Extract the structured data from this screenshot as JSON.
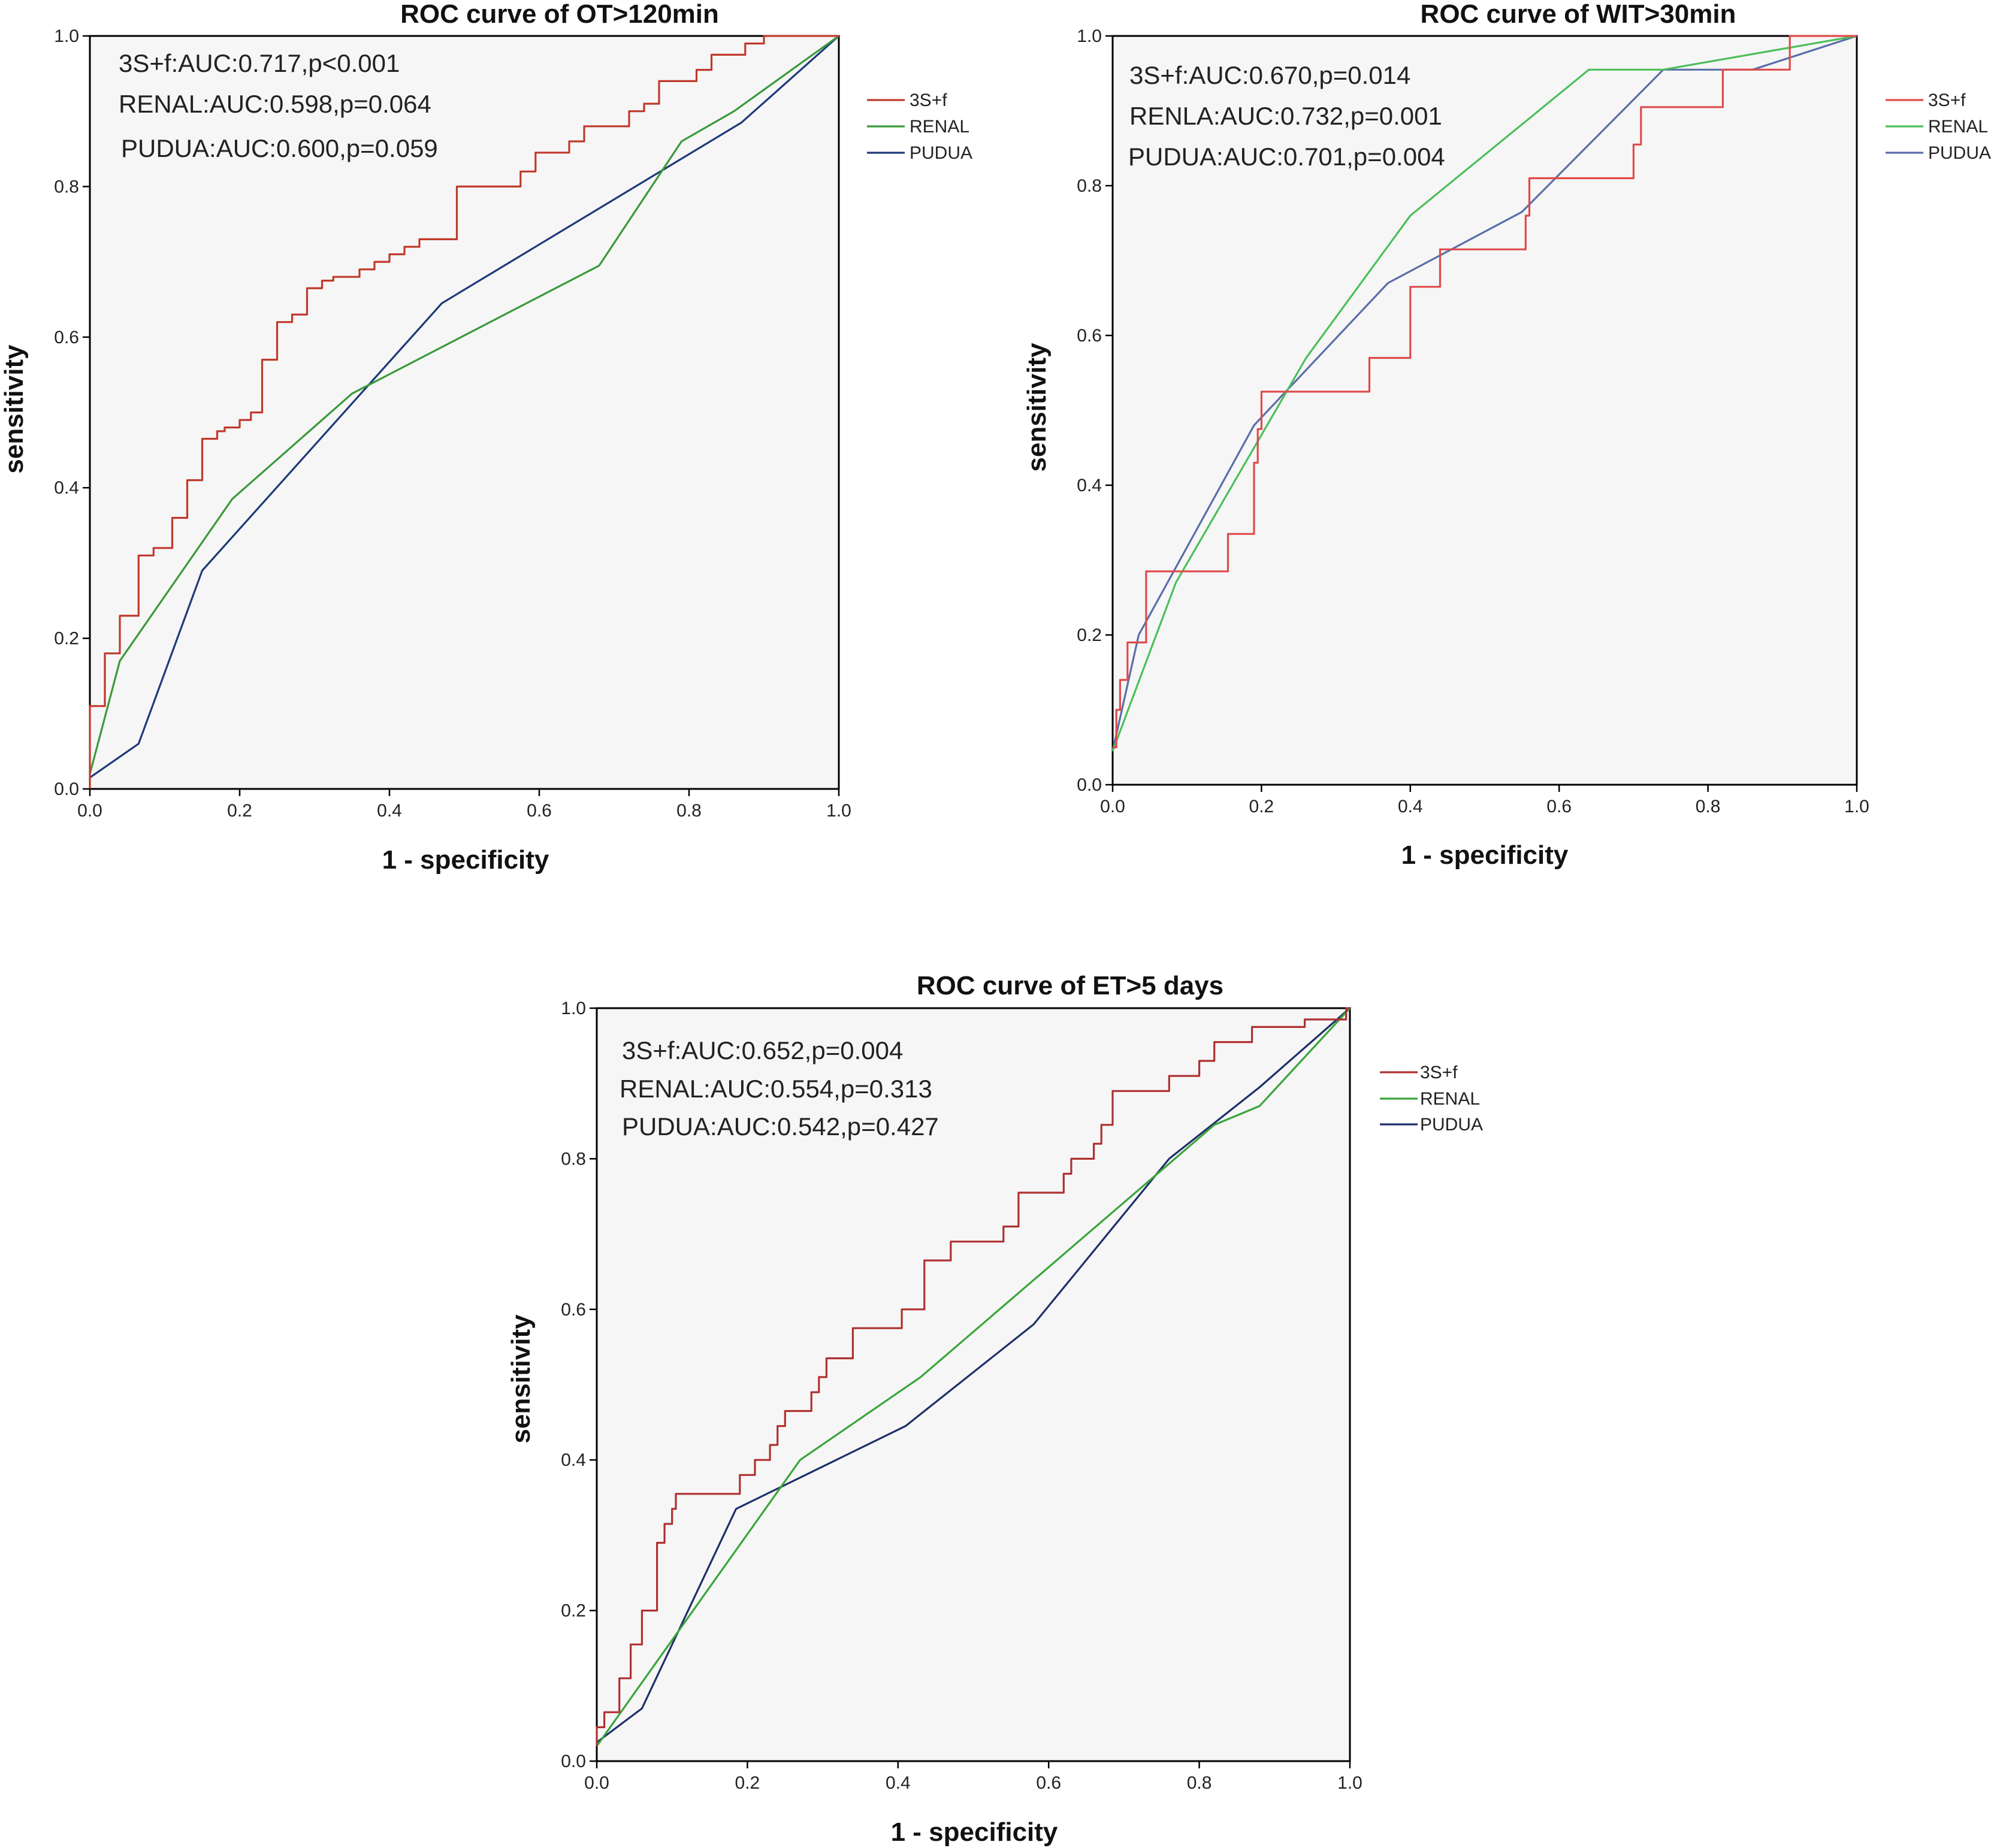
{
  "chart_data": [
    {
      "type": "line",
      "title": "ROC curve of OT>120min",
      "xlabel": "1 - specificity",
      "ylabel": "sensitivity",
      "xlim": [
        0,
        1
      ],
      "ylim": [
        0,
        1
      ],
      "x_ticks": [
        "0.0",
        "0.2",
        "0.4",
        "0.6",
        "0.8",
        "1.0"
      ],
      "y_ticks": [
        "0.0",
        "0.2",
        "0.4",
        "0.6",
        "0.8",
        "1.0"
      ],
      "legend_position": "right",
      "annotations": [
        "3S+f:AUC:0.717,p<0.001",
        "RENAL:AUC:0.598,p=0.064",
        "PUDUA:AUC:0.600,p=0.059"
      ],
      "series": [
        {
          "name": "3S+f",
          "color": "#c0392b",
          "points": [
            [
              0,
              0
            ],
            [
              0,
              0.11
            ],
            [
              0.02,
              0.11
            ],
            [
              0.02,
              0.18
            ],
            [
              0.04,
              0.18
            ],
            [
              0.04,
              0.23
            ],
            [
              0.065,
              0.23
            ],
            [
              0.065,
              0.31
            ],
            [
              0.085,
              0.31
            ],
            [
              0.085,
              0.32
            ],
            [
              0.11,
              0.32
            ],
            [
              0.11,
              0.36
            ],
            [
              0.13,
              0.36
            ],
            [
              0.13,
              0.41
            ],
            [
              0.15,
              0.41
            ],
            [
              0.15,
              0.465
            ],
            [
              0.17,
              0.465
            ],
            [
              0.17,
              0.475
            ],
            [
              0.18,
              0.475
            ],
            [
              0.18,
              0.48
            ],
            [
              0.2,
              0.48
            ],
            [
              0.2,
              0.49
            ],
            [
              0.215,
              0.49
            ],
            [
              0.215,
              0.5
            ],
            [
              0.23,
              0.5
            ],
            [
              0.23,
              0.57
            ],
            [
              0.25,
              0.57
            ],
            [
              0.25,
              0.62
            ],
            [
              0.27,
              0.62
            ],
            [
              0.27,
              0.63
            ],
            [
              0.29,
              0.63
            ],
            [
              0.29,
              0.665
            ],
            [
              0.31,
              0.665
            ],
            [
              0.31,
              0.675
            ],
            [
              0.325,
              0.675
            ],
            [
              0.325,
              0.68
            ],
            [
              0.36,
              0.68
            ],
            [
              0.36,
              0.69
            ],
            [
              0.38,
              0.69
            ],
            [
              0.38,
              0.7
            ],
            [
              0.4,
              0.7
            ],
            [
              0.4,
              0.71
            ],
            [
              0.42,
              0.71
            ],
            [
              0.42,
              0.72
            ],
            [
              0.44,
              0.72
            ],
            [
              0.44,
              0.73
            ],
            [
              0.49,
              0.73
            ],
            [
              0.49,
              0.8
            ],
            [
              0.575,
              0.8
            ],
            [
              0.575,
              0.82
            ],
            [
              0.595,
              0.82
            ],
            [
              0.595,
              0.845
            ],
            [
              0.64,
              0.845
            ],
            [
              0.64,
              0.86
            ],
            [
              0.66,
              0.86
            ],
            [
              0.66,
              0.88
            ],
            [
              0.72,
              0.88
            ],
            [
              0.72,
              0.9
            ],
            [
              0.74,
              0.9
            ],
            [
              0.74,
              0.91
            ],
            [
              0.76,
              0.91
            ],
            [
              0.76,
              0.94
            ],
            [
              0.81,
              0.94
            ],
            [
              0.81,
              0.955
            ],
            [
              0.83,
              0.955
            ],
            [
              0.83,
              0.975
            ],
            [
              0.875,
              0.975
            ],
            [
              0.875,
              0.99
            ],
            [
              0.9,
              0.99
            ],
            [
              0.9,
              1
            ],
            [
              1,
              1
            ]
          ]
        },
        {
          "name": "RENAL",
          "color": "#3a9a3a",
          "points": [
            [
              0,
              0.02
            ],
            [
              0.04,
              0.17
            ],
            [
              0.19,
              0.385
            ],
            [
              0.35,
              0.525
            ],
            [
              0.68,
              0.695
            ],
            [
              0.79,
              0.86
            ],
            [
              0.86,
              0.9
            ],
            [
              1,
              1
            ]
          ]
        },
        {
          "name": "PUDUA",
          "color": "#1f3a7a",
          "points": [
            [
              0,
              0.015
            ],
            [
              0.065,
              0.06
            ],
            [
              0.15,
              0.29
            ],
            [
              0.47,
              0.645
            ],
            [
              0.87,
              0.885
            ],
            [
              1,
              1
            ]
          ]
        }
      ]
    },
    {
      "type": "line",
      "title": "ROC curve of WIT>30min",
      "xlabel": "1 - specificity",
      "ylabel": "sensitivity",
      "xlim": [
        0,
        1
      ],
      "ylim": [
        0,
        1
      ],
      "x_ticks": [
        "0.0",
        "0.2",
        "0.4",
        "0.6",
        "0.8",
        "1.0"
      ],
      "y_ticks": [
        "0.0",
        "0.2",
        "0.4",
        "0.6",
        "0.8",
        "1.0"
      ],
      "legend_position": "right",
      "annotations": [
        "3S+f:AUC:0.670,p=0.014",
        "RENLA:AUC:0.732,p=0.001",
        "PUDUA:AUC:0.701,p=0.004"
      ],
      "series": [
        {
          "name": "3S+f",
          "color": "#e04a4a",
          "points": [
            [
              0,
              0.05
            ],
            [
              0.005,
              0.05
            ],
            [
              0.005,
              0.1
            ],
            [
              0.01,
              0.1
            ],
            [
              0.01,
              0.14
            ],
            [
              0.02,
              0.14
            ],
            [
              0.02,
              0.19
            ],
            [
              0.045,
              0.19
            ],
            [
              0.045,
              0.285
            ],
            [
              0.155,
              0.285
            ],
            [
              0.155,
              0.335
            ],
            [
              0.19,
              0.335
            ],
            [
              0.19,
              0.43
            ],
            [
              0.195,
              0.43
            ],
            [
              0.195,
              0.475
            ],
            [
              0.2,
              0.475
            ],
            [
              0.2,
              0.525
            ],
            [
              0.345,
              0.525
            ],
            [
              0.345,
              0.57
            ],
            [
              0.4,
              0.57
            ],
            [
              0.4,
              0.665
            ],
            [
              0.44,
              0.665
            ],
            [
              0.44,
              0.715
            ],
            [
              0.555,
              0.715
            ],
            [
              0.555,
              0.76
            ],
            [
              0.56,
              0.76
            ],
            [
              0.56,
              0.81
            ],
            [
              0.7,
              0.81
            ],
            [
              0.7,
              0.855
            ],
            [
              0.71,
              0.855
            ],
            [
              0.71,
              0.905
            ],
            [
              0.82,
              0.905
            ],
            [
              0.82,
              0.955
            ],
            [
              0.91,
              0.955
            ],
            [
              0.91,
              1
            ],
            [
              1,
              1
            ]
          ]
        },
        {
          "name": "RENAL",
          "color": "#4cbf5a",
          "points": [
            [
              0,
              0.045
            ],
            [
              0.085,
              0.27
            ],
            [
              0.26,
              0.57
            ],
            [
              0.4,
              0.76
            ],
            [
              0.64,
              0.955
            ],
            [
              0.74,
              0.955
            ],
            [
              1,
              1
            ]
          ]
        },
        {
          "name": "PUDUA",
          "color": "#5a6ea8",
          "points": [
            [
              0,
              0.045
            ],
            [
              0.035,
              0.2
            ],
            [
              0.19,
              0.48
            ],
            [
              0.37,
              0.67
            ],
            [
              0.55,
              0.765
            ],
            [
              0.74,
              0.955
            ],
            [
              0.86,
              0.955
            ],
            [
              1,
              1
            ]
          ]
        }
      ]
    },
    {
      "type": "line",
      "title": "ROC curve of ET>5 days",
      "xlabel": "1 - specificity",
      "ylabel": "sensitivity",
      "xlim": [
        0,
        1
      ],
      "ylim": [
        0,
        1
      ],
      "x_ticks": [
        "0.0",
        "0.2",
        "0.4",
        "0.6",
        "0.8",
        "1.0"
      ],
      "y_ticks": [
        "0.0",
        "0.2",
        "0.4",
        "0.6",
        "0.8",
        "1.0"
      ],
      "legend_position": "right",
      "annotations": [
        "3S+f:AUC:0.652,p=0.004",
        "RENAL:AUC:0.554,p=0.313",
        "PUDUA:AUC:0.542,p=0.427"
      ],
      "series": [
        {
          "name": "3S+f",
          "color": "#b03030",
          "points": [
            [
              0,
              0.02
            ],
            [
              0,
              0.045
            ],
            [
              0.01,
              0.045
            ],
            [
              0.01,
              0.065
            ],
            [
              0.03,
              0.065
            ],
            [
              0.03,
              0.11
            ],
            [
              0.045,
              0.11
            ],
            [
              0.045,
              0.155
            ],
            [
              0.06,
              0.155
            ],
            [
              0.06,
              0.2
            ],
            [
              0.08,
              0.2
            ],
            [
              0.08,
              0.29
            ],
            [
              0.09,
              0.29
            ],
            [
              0.09,
              0.315
            ],
            [
              0.1,
              0.315
            ],
            [
              0.1,
              0.335
            ],
            [
              0.105,
              0.335
            ],
            [
              0.105,
              0.355
            ],
            [
              0.19,
              0.355
            ],
            [
              0.19,
              0.38
            ],
            [
              0.21,
              0.38
            ],
            [
              0.21,
              0.4
            ],
            [
              0.23,
              0.4
            ],
            [
              0.23,
              0.42
            ],
            [
              0.24,
              0.42
            ],
            [
              0.24,
              0.445
            ],
            [
              0.25,
              0.445
            ],
            [
              0.25,
              0.465
            ],
            [
              0.285,
              0.465
            ],
            [
              0.285,
              0.49
            ],
            [
              0.295,
              0.49
            ],
            [
              0.295,
              0.51
            ],
            [
              0.305,
              0.51
            ],
            [
              0.305,
              0.535
            ],
            [
              0.34,
              0.535
            ],
            [
              0.34,
              0.575
            ],
            [
              0.405,
              0.575
            ],
            [
              0.405,
              0.6
            ],
            [
              0.435,
              0.6
            ],
            [
              0.435,
              0.665
            ],
            [
              0.47,
              0.665
            ],
            [
              0.47,
              0.69
            ],
            [
              0.54,
              0.69
            ],
            [
              0.54,
              0.71
            ],
            [
              0.56,
              0.71
            ],
            [
              0.56,
              0.755
            ],
            [
              0.62,
              0.755
            ],
            [
              0.62,
              0.78
            ],
            [
              0.63,
              0.78
            ],
            [
              0.63,
              0.8
            ],
            [
              0.66,
              0.8
            ],
            [
              0.66,
              0.82
            ],
            [
              0.67,
              0.82
            ],
            [
              0.67,
              0.845
            ],
            [
              0.685,
              0.845
            ],
            [
              0.685,
              0.89
            ],
            [
              0.76,
              0.89
            ],
            [
              0.76,
              0.91
            ],
            [
              0.8,
              0.91
            ],
            [
              0.8,
              0.93
            ],
            [
              0.82,
              0.93
            ],
            [
              0.82,
              0.955
            ],
            [
              0.87,
              0.955
            ],
            [
              0.87,
              0.975
            ],
            [
              0.94,
              0.975
            ],
            [
              0.94,
              0.985
            ],
            [
              0.995,
              0.985
            ],
            [
              0.995,
              1
            ],
            [
              1,
              1
            ]
          ]
        },
        {
          "name": "RENAL",
          "color": "#3aa53a",
          "points": [
            [
              0,
              0.02
            ],
            [
              0.27,
              0.4
            ],
            [
              0.43,
              0.51
            ],
            [
              0.82,
              0.845
            ],
            [
              0.88,
              0.87
            ],
            [
              1,
              1
            ]
          ]
        },
        {
          "name": "PUDUA",
          "color": "#1f2f6a",
          "points": [
            [
              0,
              0.025
            ],
            [
              0.06,
              0.07
            ],
            [
              0.185,
              0.335
            ],
            [
              0.41,
              0.445
            ],
            [
              0.58,
              0.58
            ],
            [
              0.76,
              0.8
            ],
            [
              0.88,
              0.895
            ],
            [
              1,
              1
            ]
          ]
        }
      ]
    }
  ]
}
